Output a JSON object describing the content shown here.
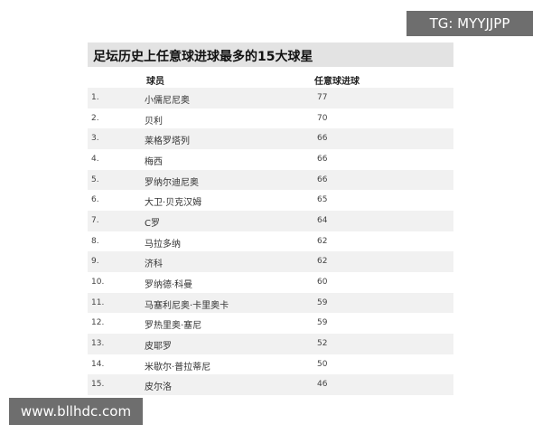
{
  "title": "足坛历史上任意球进球最多的15大球星",
  "columns": {
    "player": "球员",
    "goals": "任意球进球"
  },
  "rows": [
    {
      "rank": "1.",
      "name": "小儒尼尼奥",
      "goals": "77"
    },
    {
      "rank": "2.",
      "name": "贝利",
      "goals": "70"
    },
    {
      "rank": "3.",
      "name": "莱格罗塔列",
      "goals": "66"
    },
    {
      "rank": "4.",
      "name": "梅西",
      "goals": "66"
    },
    {
      "rank": "5.",
      "name": "罗纳尔迪尼奥",
      "goals": "66"
    },
    {
      "rank": "6.",
      "name": "大卫·贝克汉姆",
      "goals": "65"
    },
    {
      "rank": "7.",
      "name": "C罗",
      "goals": "64"
    },
    {
      "rank": "8.",
      "name": "马拉多纳",
      "goals": "62"
    },
    {
      "rank": "9.",
      "name": "济科",
      "goals": "62"
    },
    {
      "rank": "10.",
      "name": "罗纳德·科曼",
      "goals": "60"
    },
    {
      "rank": "11.",
      "name": "马塞利尼奥·卡里奥卡",
      "goals": "59"
    },
    {
      "rank": "12.",
      "name": "罗热里奥·塞尼",
      "goals": "59"
    },
    {
      "rank": "13.",
      "name": "皮耶罗",
      "goals": "52"
    },
    {
      "rank": "14.",
      "name": "米歇尔·普拉蒂尼",
      "goals": "50"
    },
    {
      "rank": "15.",
      "name": "皮尔洛",
      "goals": "46"
    }
  ],
  "watermarks": {
    "top_right": "TG: MYYJJPP",
    "bottom_left": "www.bllhdc.com"
  },
  "colors": {
    "title_bg": "#e3e3e3",
    "stripe": "#f1f1f1",
    "watermark_bg": "#555555"
  }
}
